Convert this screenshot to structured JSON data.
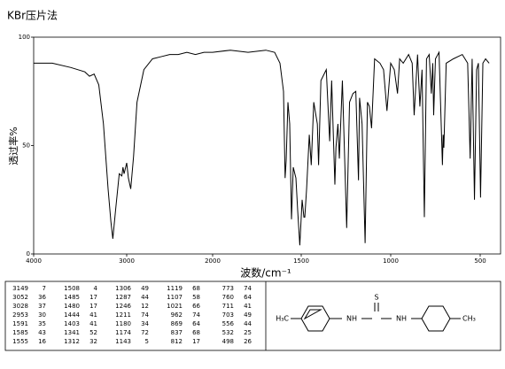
{
  "chart_data": {
    "type": "line",
    "title": "KBr压片法",
    "y_label": "透过率%",
    "x_label": "波数/cm⁻¹",
    "xlim": [
      4000,
      450
    ],
    "xticks": [
      4000,
      3000,
      2000,
      1500,
      1000,
      500
    ],
    "ylim": [
      0,
      100
    ],
    "yticks": [
      0,
      50,
      100
    ],
    "color": "#000000",
    "x": [
      4000,
      3800,
      3600,
      3450,
      3400,
      3350,
      3300,
      3250,
      3200,
      3170,
      3149,
      3120,
      3080,
      3052,
      3040,
      3028,
      3000,
      2980,
      2953,
      2920,
      2880,
      2800,
      2700,
      2600,
      2500,
      2400,
      2300,
      2200,
      2100,
      2000,
      1900,
      1800,
      1700,
      1650,
      1620,
      1600,
      1591,
      1585,
      1575,
      1565,
      1555,
      1545,
      1530,
      1520,
      1508,
      1495,
      1485,
      1480,
      1470,
      1455,
      1444,
      1430,
      1410,
      1403,
      1390,
      1360,
      1341,
      1330,
      1312,
      1306,
      1295,
      1287,
      1270,
      1246,
      1230,
      1211,
      1195,
      1180,
      1174,
      1160,
      1143,
      1130,
      1119,
      1107,
      1090,
      1060,
      1040,
      1021,
      1000,
      980,
      962,
      950,
      930,
      900,
      880,
      869,
      850,
      837,
      825,
      812,
      800,
      785,
      773,
      765,
      760,
      750,
      730,
      711,
      707,
      703,
      690,
      650,
      600,
      570,
      556,
      545,
      532,
      520,
      510,
      498,
      485,
      470,
      450
    ],
    "y": [
      88,
      88,
      86,
      84,
      82,
      83,
      78,
      60,
      30,
      15,
      7,
      20,
      37,
      36,
      40,
      37,
      42,
      35,
      30,
      45,
      70,
      85,
      90,
      91,
      92,
      92,
      93,
      92,
      93,
      93,
      94,
      93,
      94,
      93,
      88,
      75,
      35,
      43,
      70,
      60,
      16,
      40,
      35,
      20,
      4,
      25,
      17,
      17,
      30,
      55,
      41,
      70,
      60,
      41,
      80,
      85,
      52,
      80,
      32,
      49,
      60,
      44,
      80,
      12,
      70,
      74,
      75,
      34,
      72,
      60,
      5,
      70,
      68,
      58,
      90,
      88,
      85,
      66,
      88,
      85,
      74,
      90,
      88,
      92,
      88,
      64,
      92,
      68,
      85,
      17,
      90,
      92,
      74,
      88,
      64,
      90,
      93,
      41,
      55,
      49,
      88,
      90,
      92,
      88,
      44,
      90,
      25,
      85,
      88,
      26,
      88,
      90,
      88
    ]
  },
  "peak_table": [
    [
      [
        3149,
        7
      ],
      [
        3052,
        36
      ],
      [
        3028,
        37
      ],
      [
        2953,
        30
      ],
      [
        1591,
        35
      ],
      [
        1585,
        43
      ],
      [
        1555,
        16
      ]
    ],
    [
      [
        1508,
        4
      ],
      [
        1485,
        17
      ],
      [
        1480,
        17
      ],
      [
        1444,
        41
      ],
      [
        1403,
        41
      ],
      [
        1341,
        52
      ],
      [
        1312,
        32
      ]
    ],
    [
      [
        1306,
        49
      ],
      [
        1287,
        44
      ],
      [
        1246,
        12
      ],
      [
        1211,
        74
      ],
      [
        1180,
        34
      ],
      [
        1174,
        72
      ],
      [
        1143,
        5
      ]
    ],
    [
      [
        1119,
        68
      ],
      [
        1107,
        58
      ],
      [
        1021,
        66
      ],
      [
        962,
        74
      ],
      [
        869,
        64
      ],
      [
        837,
        68
      ],
      [
        812,
        17
      ]
    ],
    [
      [
        773,
        74
      ],
      [
        760,
        64
      ],
      [
        711,
        41
      ],
      [
        703,
        49
      ],
      [
        556,
        44
      ],
      [
        532,
        25
      ],
      [
        498,
        26
      ]
    ]
  ],
  "structure": {
    "left": "H₃C",
    "nh1": "NH",
    "s": "S",
    "nh2": "NH",
    "right": "CH₃"
  }
}
